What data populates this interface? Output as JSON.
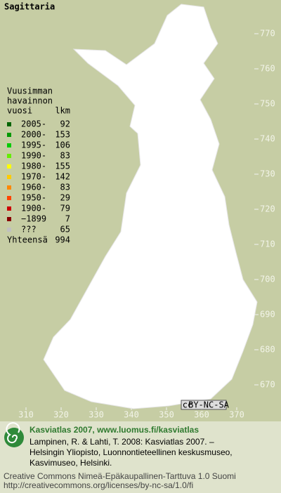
{
  "title": "Sagittaria",
  "legend": {
    "heading": [
      "Vuusimman",
      "havainnon",
      "vuosi"
    ],
    "count_heading": "lkm",
    "rows": [
      {
        "label": "2005-",
        "count": 92,
        "color": "#006400"
      },
      {
        "label": "2000-",
        "count": 153,
        "color": "#009900"
      },
      {
        "label": "1995-",
        "count": 106,
        "color": "#00cc00"
      },
      {
        "label": "1990-",
        "count": 83,
        "color": "#66ee00"
      },
      {
        "label": "1980-",
        "count": 155,
        "color": "#ffff00"
      },
      {
        "label": "1970-",
        "count": 142,
        "color": "#ffcc00"
      },
      {
        "label": "1960-",
        "count": 83,
        "color": "#ff8800"
      },
      {
        "label": "1950-",
        "count": 29,
        "color": "#ff4400"
      },
      {
        "label": "1900-",
        "count": 79,
        "color": "#cc0000"
      },
      {
        "label": "−1899",
        "count": 7,
        "color": "#880000"
      },
      {
        "label": "???",
        "count": 65,
        "color": "#c0c0c0"
      }
    ],
    "total_label": "Yhteensä",
    "total": 994
  },
  "map": {
    "yticks": [
      770,
      760,
      750,
      740,
      730,
      720,
      710,
      700,
      690,
      680,
      670
    ],
    "xticks": [
      310,
      320,
      330,
      340,
      350,
      360,
      370
    ],
    "badge_icon": "cc",
    "badge": "BY-NC-SA"
  },
  "footer": {
    "brand": "Kasviatlas 2007, www.luomus.fi/kasviatlas",
    "citation": [
      "Lampinen, R. & Lahti, T. 2008: Kasviatlas 2007. –",
      "Helsingin Yliopisto, Luonnontieteellinen keskusmuseo,",
      "Kasvimuseo, Helsinki."
    ],
    "license": [
      "Creative Commons Nimeä-Epäkaupallinen-Tarttuva 1.0 Suomi",
      "http://creativecommons.org/licenses/by-nc-sa/1.0/fi"
    ]
  }
}
